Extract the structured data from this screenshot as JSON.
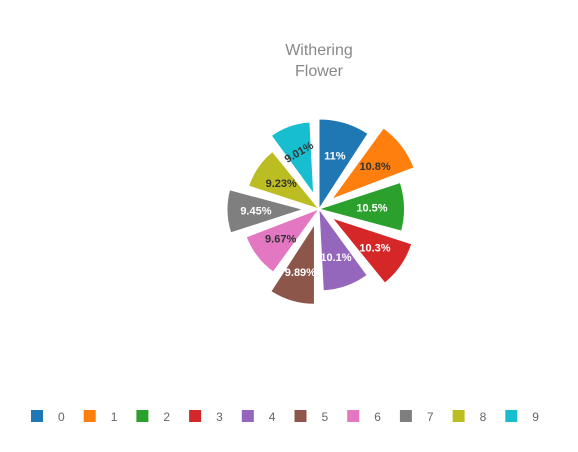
{
  "chart_data": {
    "type": "pie",
    "variant": "rose (equal angles, variable radius)",
    "title_lines": [
      "Withering",
      "Flower"
    ],
    "categories": [
      "0",
      "1",
      "2",
      "3",
      "4",
      "5",
      "6",
      "7",
      "8",
      "9"
    ],
    "values": [
      11,
      10.8,
      10.5,
      10.3,
      10.1,
      9.89,
      9.67,
      9.45,
      9.23,
      9.01
    ],
    "labels": [
      "11%",
      "10.8%",
      "10.5%",
      "10.3%",
      "10.1%",
      "9.89%",
      "9.67%",
      "9.45%",
      "9.23%",
      "9.01%"
    ],
    "colors": [
      "#1f77b4",
      "#ff7f0e",
      "#2ca02c",
      "#d62728",
      "#9467bd",
      "#8c564b",
      "#e377c2",
      "#7f7f7f",
      "#bcbd22",
      "#17becf"
    ],
    "legend_position": "bottom",
    "grid": false
  }
}
